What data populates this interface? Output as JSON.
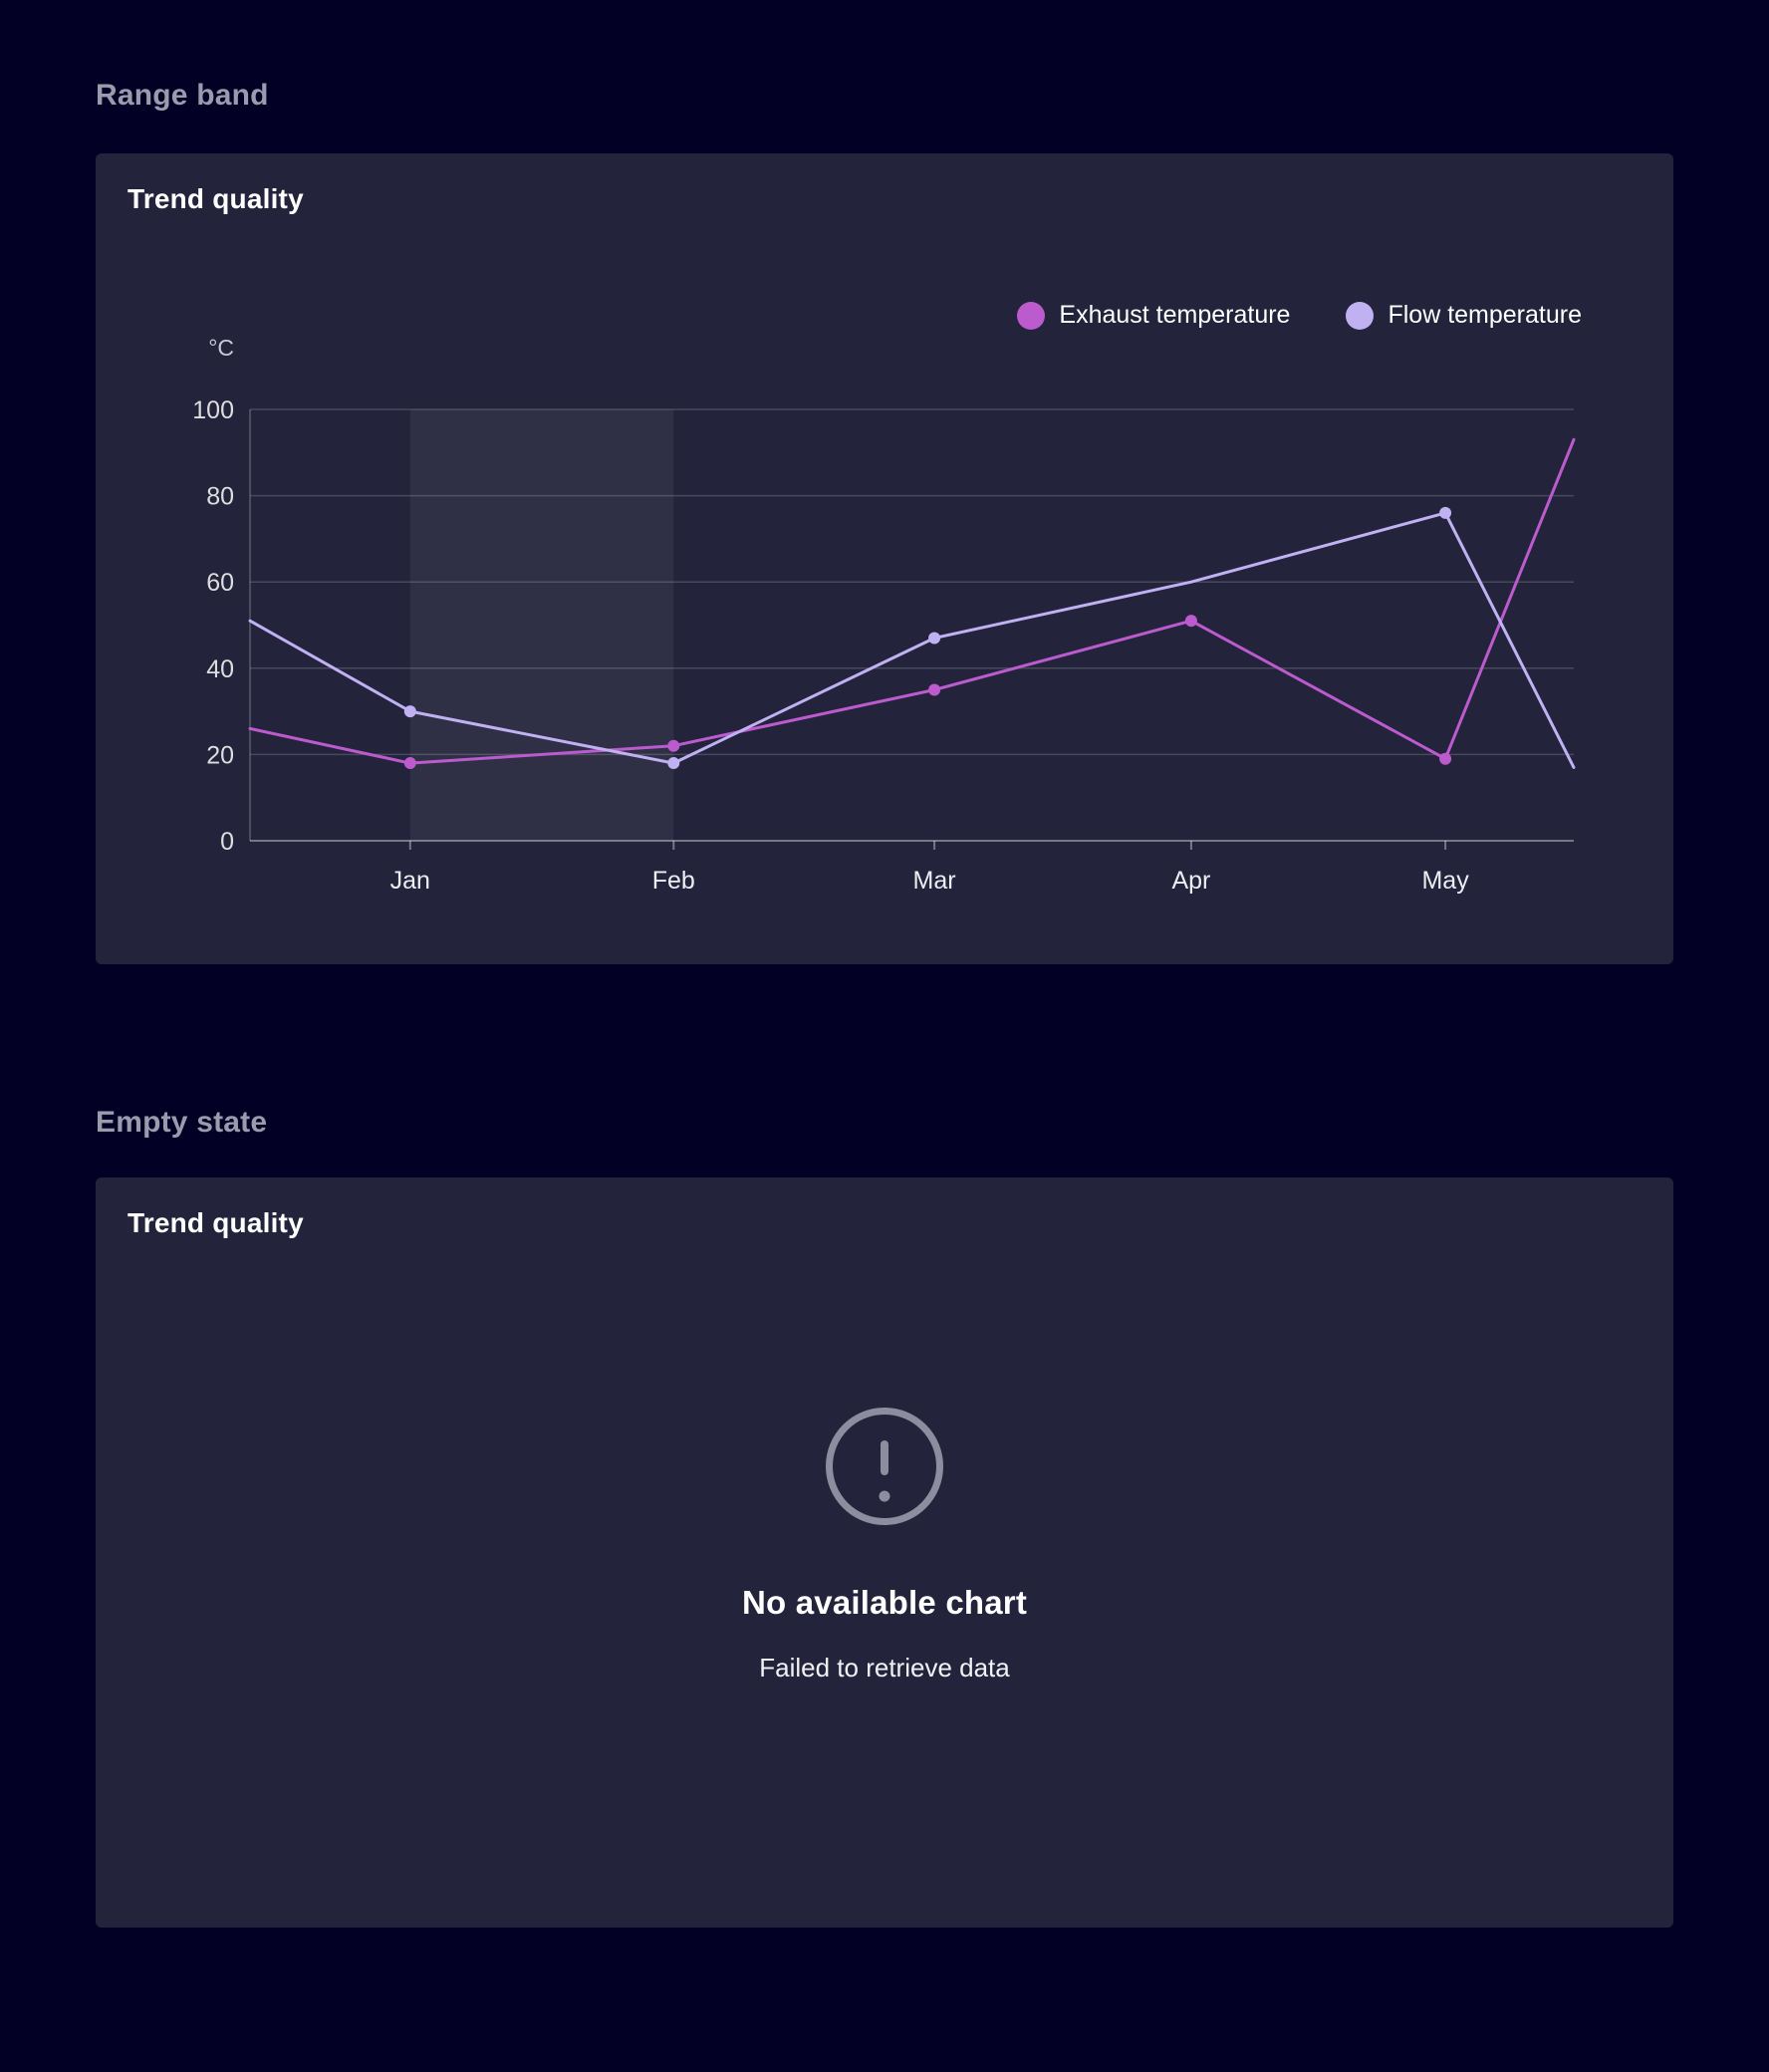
{
  "page": {
    "theme": {
      "background_color": "#020024",
      "card_color": "#23233c",
      "section_title_color": "#9b9bae"
    },
    "sections": [
      {
        "title": "Range band",
        "card": {
          "title": "Trend quality"
        }
      },
      {
        "title": "Empty state",
        "card": {
          "title": "Trend quality",
          "empty_state": {
            "icon": "exclamation-circle-icon",
            "icon_color": "#8d8d9f",
            "heading": "No available chart",
            "message": "Failed to retrieve data"
          }
        }
      }
    ]
  },
  "chart_data": {
    "type": "line",
    "title": "Trend quality",
    "y_unit": "°C",
    "ylim": [
      0,
      100
    ],
    "y_ticks": [
      0,
      20,
      40,
      60,
      80,
      100
    ],
    "categories": [
      "Jan",
      "Feb",
      "Mar",
      "Apr",
      "May"
    ],
    "grid": true,
    "legend_position": "top-right",
    "range_band": {
      "from": "Jan",
      "to": "Feb",
      "color": "rgba(255,255,255,0.055)"
    },
    "series": [
      {
        "name": "Exhaust temperature",
        "color": "#bc5bce",
        "points": [
          {
            "x": "left-edge",
            "value": 26,
            "marker": false
          },
          {
            "x": "Jan",
            "value": 18,
            "marker": true
          },
          {
            "x": "Feb",
            "value": 22,
            "marker": true
          },
          {
            "x": "Mar",
            "value": 35,
            "marker": true
          },
          {
            "x": "Apr",
            "value": 51,
            "marker": true
          },
          {
            "x": "May",
            "value": 19,
            "marker": true
          },
          {
            "x": "right-edge",
            "value": 93,
            "marker": false
          }
        ]
      },
      {
        "name": "Flow temperature",
        "color": "#c0b1f2",
        "points": [
          {
            "x": "left-edge",
            "value": 51,
            "marker": false
          },
          {
            "x": "Jan",
            "value": 30,
            "marker": true
          },
          {
            "x": "Feb",
            "value": 18,
            "marker": true
          },
          {
            "x": "Mar",
            "value": 47,
            "marker": true
          },
          {
            "x": "Apr",
            "value": 60,
            "marker": false
          },
          {
            "x": "May",
            "value": 76,
            "marker": true
          },
          {
            "x": "right-edge",
            "value": 17,
            "marker": false
          }
        ]
      }
    ]
  }
}
